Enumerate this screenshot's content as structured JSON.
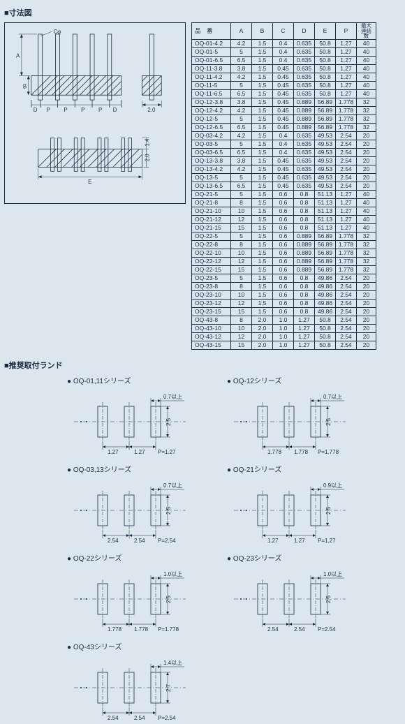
{
  "section1_title": "■寸法図",
  "section2_title": "■推奨取付ランド",
  "drawing_labels": {
    "phi": "Cφ",
    "A": "A",
    "B": "B",
    "D": "D",
    "P": "P",
    "E": "E",
    "side_w": "2.0",
    "h1": "1.4",
    "h2": "2.0"
  },
  "table": {
    "headers": {
      "part": "品　番",
      "A": "A",
      "B": "B",
      "C": "C",
      "D": "D",
      "E": "E",
      "P": "P",
      "max": "最大\n連結数"
    },
    "rows": [
      [
        "OQ-01-4.2",
        "4.2",
        "1.5",
        "0.4",
        "0.635",
        "50.8",
        "1.27",
        "40"
      ],
      [
        "OQ-01-5",
        "5",
        "1.5",
        "0.4",
        "0.635",
        "50.8",
        "1.27",
        "40"
      ],
      [
        "OQ-01-6.5",
        "6.5",
        "1.5",
        "0.4",
        "0.635",
        "50.8",
        "1.27",
        "40"
      ],
      [
        "OQ-11-3.8",
        "3.8",
        "1.5",
        "0.45",
        "0.635",
        "50.8",
        "1.27",
        "40"
      ],
      [
        "OQ-11-4.2",
        "4.2",
        "1.5",
        "0.45",
        "0.635",
        "50.8",
        "1.27",
        "40"
      ],
      [
        "OQ-11-5",
        "5",
        "1.5",
        "0.45",
        "0.635",
        "50.8",
        "1.27",
        "40"
      ],
      [
        "OQ-11-6.5",
        "6.5",
        "1.5",
        "0.45",
        "0.635",
        "50.8",
        "1.27",
        "40"
      ],
      [
        "OQ-12-3.8",
        "3.8",
        "1.5",
        "0.45",
        "0.889",
        "56.89",
        "1.778",
        "32"
      ],
      [
        "OQ-12-4.2",
        "4.2",
        "1.5",
        "0.45",
        "0.889",
        "56.89",
        "1.778",
        "32"
      ],
      [
        "OQ-12-5",
        "5",
        "1.5",
        "0.45",
        "0.889",
        "56.89",
        "1.778",
        "32"
      ],
      [
        "OQ-12-6.5",
        "6.5",
        "1.5",
        "0.45",
        "0.889",
        "56.89",
        "1.778",
        "32"
      ],
      [
        "OQ-03-4.2",
        "4.2",
        "1.5",
        "0.4",
        "0.635",
        "49.53",
        "2.54",
        "20"
      ],
      [
        "OQ-03-5",
        "5",
        "1.5",
        "0.4",
        "0.635",
        "49.53",
        "2.54",
        "20"
      ],
      [
        "OQ-03-6.5",
        "6.5",
        "1.5",
        "0.4",
        "0.635",
        "49.53",
        "2.54",
        "20"
      ],
      [
        "OQ-13-3.8",
        "3.8",
        "1.5",
        "0.45",
        "0.635",
        "49.53",
        "2.54",
        "20"
      ],
      [
        "OQ-13-4.2",
        "4.2",
        "1.5",
        "0.45",
        "0.635",
        "49.53",
        "2.54",
        "20"
      ],
      [
        "OQ-13-5",
        "5",
        "1.5",
        "0.45",
        "0.635",
        "49.53",
        "2.54",
        "20"
      ],
      [
        "OQ-13-6.5",
        "6.5",
        "1.5",
        "0.45",
        "0.635",
        "49.53",
        "2.54",
        "20"
      ],
      [
        "OQ-21-5",
        "5",
        "1.5",
        "0.6",
        "0.8",
        "51.13",
        "1.27",
        "40"
      ],
      [
        "OQ-21-8",
        "8",
        "1.5",
        "0.6",
        "0.8",
        "51.13",
        "1.27",
        "40"
      ],
      [
        "OQ-21-10",
        "10",
        "1.5",
        "0.6",
        "0.8",
        "51.13",
        "1.27",
        "40"
      ],
      [
        "OQ-21-12",
        "12",
        "1.5",
        "0.6",
        "0.8",
        "51.13",
        "1.27",
        "40"
      ],
      [
        "OQ-21-15",
        "15",
        "1.5",
        "0.6",
        "0.8",
        "51.13",
        "1.27",
        "40"
      ],
      [
        "OQ-22-5",
        "5",
        "1.5",
        "0.6",
        "0.889",
        "56.89",
        "1.778",
        "32"
      ],
      [
        "OQ-22-8",
        "8",
        "1.5",
        "0.6",
        "0.889",
        "56.89",
        "1.778",
        "32"
      ],
      [
        "OQ-22-10",
        "10",
        "1.5",
        "0.6",
        "0.889",
        "56.89",
        "1.778",
        "32"
      ],
      [
        "OQ-22-12",
        "12",
        "1.5",
        "0.6",
        "0.889",
        "56.89",
        "1.778",
        "32"
      ],
      [
        "OQ-22-15",
        "15",
        "1.5",
        "0.6",
        "0.889",
        "56.89",
        "1.778",
        "32"
      ],
      [
        "OQ-23-5",
        "5",
        "1.5",
        "0.6",
        "0.8",
        "49.86",
        "2.54",
        "20"
      ],
      [
        "OQ-23-8",
        "8",
        "1.5",
        "0.6",
        "0.8",
        "49.86",
        "2.54",
        "20"
      ],
      [
        "OQ-23-10",
        "10",
        "1.5",
        "0.6",
        "0.8",
        "49.86",
        "2.54",
        "20"
      ],
      [
        "OQ-23-12",
        "12",
        "1.5",
        "0.6",
        "0.8",
        "49.86",
        "2.54",
        "20"
      ],
      [
        "OQ-23-15",
        "15",
        "1.5",
        "0.6",
        "0.8",
        "49.86",
        "2.54",
        "20"
      ],
      [
        "OQ-43-8",
        "8",
        "2.0",
        "1.0",
        "1.27",
        "50.8",
        "2.54",
        "20"
      ],
      [
        "OQ-43-10",
        "10",
        "2.0",
        "1.0",
        "1.27",
        "50.8",
        "2.54",
        "20"
      ],
      [
        "OQ-43-12",
        "12",
        "2.0",
        "1.0",
        "1.27",
        "50.8",
        "2.54",
        "20"
      ],
      [
        "OQ-43-15",
        "15",
        "2.0",
        "1.0",
        "1.27",
        "50.8",
        "2.54",
        "20"
      ]
    ]
  },
  "lands": [
    {
      "title": "OQ-01,11シリーズ",
      "top": "0.7以上",
      "h": "2.5",
      "d1": "1.27",
      "d2": "1.27",
      "p": "P=1.27"
    },
    {
      "title": "OQ-12シリーズ",
      "top": "0.7以上",
      "h": "2.5",
      "d1": "1.778",
      "d2": "1.778",
      "p": "P=1.778"
    },
    {
      "title": "OQ-03,13シリーズ",
      "top": "0.7以上",
      "h": "2.5",
      "d1": "2.54",
      "d2": "2.54",
      "p": "P=2.54"
    },
    {
      "title": "OQ-21シリーズ",
      "top": "0.9以上",
      "h": "2.5",
      "d1": "1.27",
      "d2": "1.27",
      "p": "P=1.27"
    },
    {
      "title": "OQ-22シリーズ",
      "top": "1.0以上",
      "h": "2.5",
      "d1": "1.778",
      "d2": "1.778",
      "p": "P=1.778"
    },
    {
      "title": "OQ-23シリーズ",
      "top": "1.0以上",
      "h": "2.5",
      "d1": "2.54",
      "d2": "2.54",
      "p": "P=2.54"
    },
    {
      "title": "OQ-43シリーズ",
      "top": "1.4以上",
      "h": "2.7",
      "d1": "2.54",
      "d2": "2.54",
      "p": "P=2.54"
    }
  ]
}
